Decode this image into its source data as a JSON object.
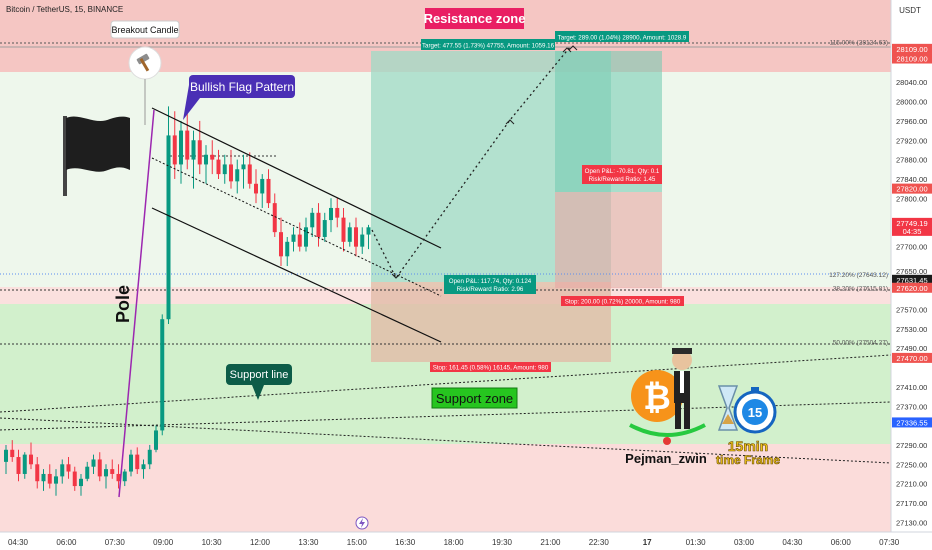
{
  "header": {
    "symbol_title": "Bitcoin / TetherUS, 15, BINANCE",
    "currency": "USDT"
  },
  "labels": {
    "resistance_zone": "Resistance zone",
    "support_zone": "Support zone",
    "support_line": "Support line",
    "breakout_candle": "Breakout Candle",
    "bullish_flag": "Bullish Flag Pattern",
    "pole": "Pole",
    "author": "Pejman_zwin",
    "timeframe_badge": "15",
    "timeframe_text_1": "15min",
    "timeframe_text_2": "time Frame"
  },
  "positions": {
    "pos1_target": "Target: 477.55 (1.73%) 47755, Amount: 1059.16",
    "pos1_open": "Open P&L: 117.74, Qty: 0.124",
    "pos1_rr": "Risk/Reward Ratio: 2.96",
    "pos1_stop": "Stop: 161.45 (0.58%) 16145, Amount: 980",
    "pos2_target": "Target: 289.00 (1.04%) 28900, Amount: 1028.9",
    "pos2_open": "Open P&L: -70.81, Qty: 0.1",
    "pos2_rr": "Risk/Reward Ratio: 1.45",
    "pos2_stop": "Stop: 200.00 (0.72%) 20000, Amount: 980"
  },
  "fib_labels": [
    {
      "text": "115.00% (28124.63)",
      "price": 28124.63
    },
    {
      "text": "127.20% (27643.12)",
      "price": 27643.12
    },
    {
      "text": "38.20% (27615.81)",
      "price": 27615.81
    },
    {
      "text": "50.00% (27504.27)",
      "price": 27504.27
    }
  ],
  "price_ticks": [
    "28040.00",
    "28000.00",
    "27960.00",
    "27920.00",
    "27880.00",
    "27840.00",
    "27800.00",
    "27700.00",
    "27650.00",
    "27570.00",
    "27530.00",
    "27490.00",
    "27410.00",
    "27370.00",
    "27290.00",
    "27250.00",
    "27210.00",
    "27170.00",
    "27130.00"
  ],
  "price_badges": [
    {
      "text": "28109.00",
      "price": 28109,
      "color": "#ef5350"
    },
    {
      "text": "28109.00",
      "price": 28089,
      "color": "#ef5350"
    },
    {
      "text": "27820.00",
      "price": 27820,
      "color": "#ef5350"
    },
    {
      "text": "27749.19",
      "text2": "04:35",
      "price": 27749.19,
      "color": "#f23645"
    },
    {
      "text": "27631.45",
      "price": 27631.45,
      "color": "#1b1b1b"
    },
    {
      "text": "27620.00",
      "price": 27615,
      "color": "#ef5350"
    },
    {
      "text": "27470.00",
      "price": 27470,
      "color": "#ef5350"
    },
    {
      "text": "27336.55",
      "price": 27336.55,
      "color": "#2962ff"
    }
  ],
  "time_ticks": [
    "04:30",
    "06:00",
    "07:30",
    "09:00",
    "10:30",
    "12:00",
    "13:30",
    "15:00",
    "16:30",
    "18:00",
    "19:30",
    "21:00",
    "22:30",
    "17",
    "01:30",
    "03:00",
    "04:30",
    "06:00",
    "07:30"
  ],
  "chart_data": {
    "type": "candlestick",
    "ylim": [
      27110,
      28210
    ],
    "colors": {
      "up": "#089981",
      "down": "#f23645"
    },
    "candles": [
      [
        27255,
        27290,
        27230,
        27280
      ],
      [
        27280,
        27300,
        27255,
        27265
      ],
      [
        27265,
        27280,
        27215,
        27230
      ],
      [
        27230,
        27275,
        27220,
        27270
      ],
      [
        27270,
        27295,
        27240,
        27250
      ],
      [
        27250,
        27265,
        27200,
        27215
      ],
      [
        27215,
        27240,
        27195,
        27230
      ],
      [
        27230,
        27250,
        27200,
        27210
      ],
      [
        27210,
        27240,
        27185,
        27225
      ],
      [
        27225,
        27260,
        27210,
        27250
      ],
      [
        27250,
        27265,
        27220,
        27235
      ],
      [
        27235,
        27245,
        27195,
        27205
      ],
      [
        27205,
        27230,
        27185,
        27220
      ],
      [
        27220,
        27255,
        27215,
        27245
      ],
      [
        27245,
        27270,
        27230,
        27260
      ],
      [
        27260,
        27275,
        27215,
        27225
      ],
      [
        27225,
        27250,
        27200,
        27240
      ],
      [
        27240,
        27260,
        27220,
        27230
      ],
      [
        27230,
        27250,
        27200,
        27215
      ],
      [
        27215,
        27240,
        27205,
        27235
      ],
      [
        27235,
        27280,
        27225,
        27270
      ],
      [
        27270,
        27285,
        27230,
        27240
      ],
      [
        27240,
        27260,
        27220,
        27250
      ],
      [
        27250,
        27290,
        27240,
        27280
      ],
      [
        27280,
        27330,
        27275,
        27320
      ],
      [
        27320,
        27560,
        27310,
        27550
      ],
      [
        27550,
        27990,
        27540,
        27930
      ],
      [
        27930,
        27980,
        27840,
        27870
      ],
      [
        27870,
        27960,
        27830,
        27940
      ],
      [
        27940,
        27985,
        27860,
        27880
      ],
      [
        27880,
        27940,
        27820,
        27920
      ],
      [
        27920,
        27960,
        27850,
        27870
      ],
      [
        27870,
        27910,
        27830,
        27890
      ],
      [
        27890,
        27920,
        27850,
        27880
      ],
      [
        27880,
        27900,
        27840,
        27850
      ],
      [
        27850,
        27890,
        27830,
        27870
      ],
      [
        27870,
        27900,
        27820,
        27835
      ],
      [
        27835,
        27880,
        27810,
        27860
      ],
      [
        27860,
        27890,
        27820,
        27870
      ],
      [
        27870,
        27895,
        27820,
        27830
      ],
      [
        27830,
        27860,
        27790,
        27810
      ],
      [
        27810,
        27850,
        27780,
        27840
      ],
      [
        27840,
        27860,
        27780,
        27790
      ],
      [
        27790,
        27810,
        27720,
        27730
      ],
      [
        27730,
        27760,
        27660,
        27680
      ],
      [
        27680,
        27720,
        27660,
        27710
      ],
      [
        27710,
        27740,
        27690,
        27725
      ],
      [
        27725,
        27750,
        27690,
        27700
      ],
      [
        27700,
        27760,
        27690,
        27740
      ],
      [
        27740,
        27780,
        27720,
        27770
      ],
      [
        27770,
        27790,
        27700,
        27720
      ],
      [
        27720,
        27770,
        27710,
        27755
      ],
      [
        27755,
        27800,
        27730,
        27780
      ],
      [
        27780,
        27800,
        27740,
        27760
      ],
      [
        27760,
        27780,
        27690,
        27710
      ],
      [
        27710,
        27750,
        27700,
        27740
      ],
      [
        27740,
        27760,
        27680,
        27700
      ],
      [
        27700,
        27740,
        27685,
        27725
      ],
      [
        27725,
        27745,
        27695,
        27740
      ]
    ]
  }
}
